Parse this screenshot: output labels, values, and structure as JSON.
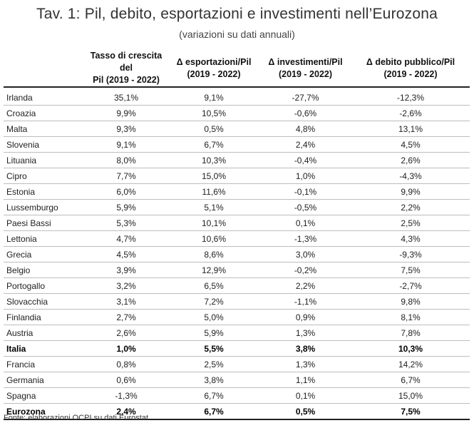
{
  "title": "Tav. 1: Pil, debito, esportazioni e investimenti nell’Eurozona",
  "subtitle": "(variazioni su dati annuali)",
  "columns": [
    {
      "line1": "",
      "line2": ""
    },
    {
      "line1": "Tasso di crescita del",
      "line2": "Pil (2019 - 2022)"
    },
    {
      "line1": "Δ esportazioni/Pil",
      "line2": "(2019 - 2022)"
    },
    {
      "line1": "Δ investimenti/Pil",
      "line2": "(2019 - 2022)"
    },
    {
      "line1": "Δ debito pubblico/Pil",
      "line2": "(2019 - 2022)"
    }
  ],
  "rows": [
    {
      "country": "Irlanda",
      "gdp": "35,1%",
      "exp": "9,1%",
      "inv": "-27,7%",
      "debt": "-12,3%",
      "bold": false
    },
    {
      "country": "Croazia",
      "gdp": "9,9%",
      "exp": "10,5%",
      "inv": "-0,6%",
      "debt": "-2,6%",
      "bold": false
    },
    {
      "country": "Malta",
      "gdp": "9,3%",
      "exp": "0,5%",
      "inv": "4,8%",
      "debt": "13,1%",
      "bold": false
    },
    {
      "country": "Slovenia",
      "gdp": "9,1%",
      "exp": "6,7%",
      "inv": "2,4%",
      "debt": "4,5%",
      "bold": false
    },
    {
      "country": "Lituania",
      "gdp": "8,0%",
      "exp": "10,3%",
      "inv": "-0,4%",
      "debt": "2,6%",
      "bold": false
    },
    {
      "country": "Cipro",
      "gdp": "7,7%",
      "exp": "15,0%",
      "inv": "1,0%",
      "debt": "-4,3%",
      "bold": false
    },
    {
      "country": "Estonia",
      "gdp": "6,0%",
      "exp": "11,6%",
      "inv": "-0,1%",
      "debt": "9,9%",
      "bold": false
    },
    {
      "country": "Lussemburgo",
      "gdp": "5,9%",
      "exp": "5,1%",
      "inv": "-0,5%",
      "debt": "2,2%",
      "bold": false
    },
    {
      "country": "Paesi Bassi",
      "gdp": "5,3%",
      "exp": "10,1%",
      "inv": "0,1%",
      "debt": "2,5%",
      "bold": false
    },
    {
      "country": "Lettonia",
      "gdp": "4,7%",
      "exp": "10,6%",
      "inv": "-1,3%",
      "debt": "4,3%",
      "bold": false
    },
    {
      "country": "Grecia",
      "gdp": "4,5%",
      "exp": "8,6%",
      "inv": "3,0%",
      "debt": "-9,3%",
      "bold": false
    },
    {
      "country": "Belgio",
      "gdp": "3,9%",
      "exp": "12,9%",
      "inv": "-0,2%",
      "debt": "7,5%",
      "bold": false
    },
    {
      "country": "Portogallo",
      "gdp": "3,2%",
      "exp": "6,5%",
      "inv": "2,2%",
      "debt": "-2,7%",
      "bold": false
    },
    {
      "country": "Slovacchia",
      "gdp": "3,1%",
      "exp": "7,2%",
      "inv": "-1,1%",
      "debt": "9,8%",
      "bold": false
    },
    {
      "country": "Finlandia",
      "gdp": "2,7%",
      "exp": "5,0%",
      "inv": "0,9%",
      "debt": "8,1%",
      "bold": false
    },
    {
      "country": "Austria",
      "gdp": "2,6%",
      "exp": "5,9%",
      "inv": "1,3%",
      "debt": "7,8%",
      "bold": false
    },
    {
      "country": "Italia",
      "gdp": "1,0%",
      "exp": "5,5%",
      "inv": "3,8%",
      "debt": "10,3%",
      "bold": true
    },
    {
      "country": "Francia",
      "gdp": "0,8%",
      "exp": "2,5%",
      "inv": "1,3%",
      "debt": "14,2%",
      "bold": false
    },
    {
      "country": "Germania",
      "gdp": "0,6%",
      "exp": "3,8%",
      "inv": "1,1%",
      "debt": "6,7%",
      "bold": false
    },
    {
      "country": "Spagna",
      "gdp": "-1,3%",
      "exp": "6,7%",
      "inv": "0,1%",
      "debt": "15,0%",
      "bold": false
    },
    {
      "country": "Eurozona",
      "gdp": "2,4%",
      "exp": "6,7%",
      "inv": "0,5%",
      "debt": "7,5%",
      "bold": true
    }
  ],
  "source": "Fonte: elaborazioni OCPI su dati Eurostat."
}
